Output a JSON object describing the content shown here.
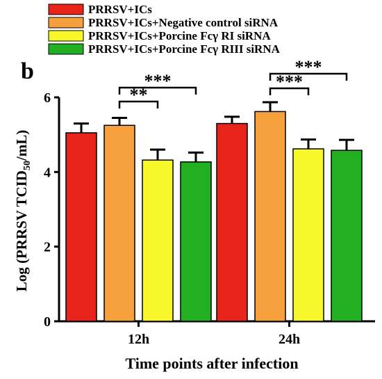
{
  "chart_data": {
    "type": "bar",
    "panel_label": "b",
    "xlabel": "Time points after infection",
    "ylabel_prefix": "Log (PRRSV TCID",
    "ylabel_sub": "50",
    "ylabel_suffix": "/mL)",
    "ylim": [
      0,
      6
    ],
    "yticks": [
      0,
      2,
      4,
      6
    ],
    "categories": [
      "12h",
      "24h"
    ],
    "series": [
      {
        "name": "PRRSV+ICs",
        "color": "#e8231a",
        "values": [
          5.05,
          5.3
        ],
        "errors": [
          0.25,
          0.18
        ]
      },
      {
        "name": "PRRSV+ICs+Negative control siRNA",
        "color": "#f5a03c",
        "values": [
          5.25,
          5.62
        ],
        "errors": [
          0.2,
          0.25
        ]
      },
      {
        "name": "PRRSV+ICs+Porcine Fcγ  RI siRNA",
        "color": "#f7f72a",
        "values": [
          4.32,
          4.62
        ],
        "errors": [
          0.28,
          0.25
        ]
      },
      {
        "name": "PRRSV+ICs+Porcine Fcγ  RIII siRNA",
        "color": "#22b022",
        "values": [
          4.27,
          4.58
        ],
        "errors": [
          0.25,
          0.28
        ]
      }
    ],
    "significance": [
      {
        "category": 0,
        "from_series": 1,
        "to_series": 2,
        "label": "**"
      },
      {
        "category": 0,
        "from_series": 1,
        "to_series": 3,
        "label": "***"
      },
      {
        "category": 1,
        "from_series": 1,
        "to_series": 2,
        "label": "***"
      },
      {
        "category": 1,
        "from_series": 1,
        "to_series": 3,
        "label": "***"
      }
    ],
    "legend_position": "top-left",
    "grid": false
  }
}
